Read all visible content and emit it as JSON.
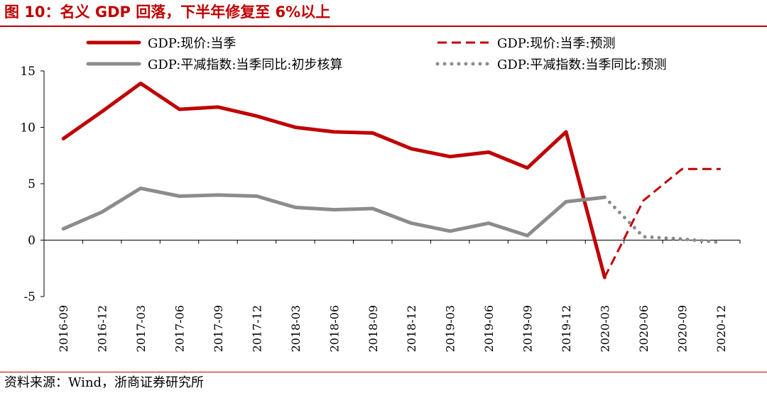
{
  "title": "图 10：名义 GDP 回落，下半年修复至 6%以上",
  "source": "资料来源：Wind，浙商证券研究所",
  "colors": {
    "red": "#c00000",
    "gray": "#8c8c8c",
    "axis": "#000000",
    "accent": "#c00000"
  },
  "chart_data": {
    "type": "line",
    "ylim": [
      -5,
      15
    ],
    "yticks": [
      -5,
      0,
      5,
      10,
      15
    ],
    "categories": [
      "2016-09",
      "2016-12",
      "2017-03",
      "2017-06",
      "2017-09",
      "2017-12",
      "2018-03",
      "2018-06",
      "2018-09",
      "2018-12",
      "2019-03",
      "2019-06",
      "2019-09",
      "2019-12",
      "2020-03",
      "2020-06",
      "2020-09",
      "2020-12"
    ],
    "series": [
      {
        "name": "GDP:现价:当季",
        "style": "solid",
        "color": "red",
        "values": [
          9.0,
          11.4,
          13.9,
          11.6,
          11.8,
          11.0,
          10.0,
          9.6,
          9.5,
          8.1,
          7.4,
          7.8,
          6.4,
          9.6,
          -3.3,
          null,
          null,
          null
        ]
      },
      {
        "name": "GDP:现价:当季:预测",
        "style": "dashed",
        "color": "red",
        "values": [
          null,
          null,
          null,
          null,
          null,
          null,
          null,
          null,
          null,
          null,
          null,
          null,
          null,
          null,
          -3.3,
          3.5,
          6.3,
          6.3
        ]
      },
      {
        "name": "GDP:平减指数:当季同比:初步核算",
        "style": "solid",
        "color": "gray",
        "values": [
          1.0,
          2.5,
          4.6,
          3.9,
          4.0,
          3.9,
          2.9,
          2.7,
          2.8,
          1.5,
          0.8,
          1.5,
          0.4,
          3.4,
          3.8,
          null,
          null,
          null
        ]
      },
      {
        "name": "GDP:平减指数:当季同比:预测",
        "style": "dotted",
        "color": "gray",
        "values": [
          null,
          null,
          null,
          null,
          null,
          null,
          null,
          null,
          null,
          null,
          null,
          null,
          null,
          null,
          3.8,
          0.3,
          0.1,
          -0.2
        ]
      }
    ],
    "legend": {
      "placement": "top",
      "entries": [
        "GDP:现价:当季",
        "GDP:现价:当季:预测",
        "GDP:平减指数:当季同比:初步核算",
        "GDP:平减指数:当季同比:预测"
      ]
    },
    "grid": false,
    "xlabel": "",
    "ylabel": ""
  }
}
